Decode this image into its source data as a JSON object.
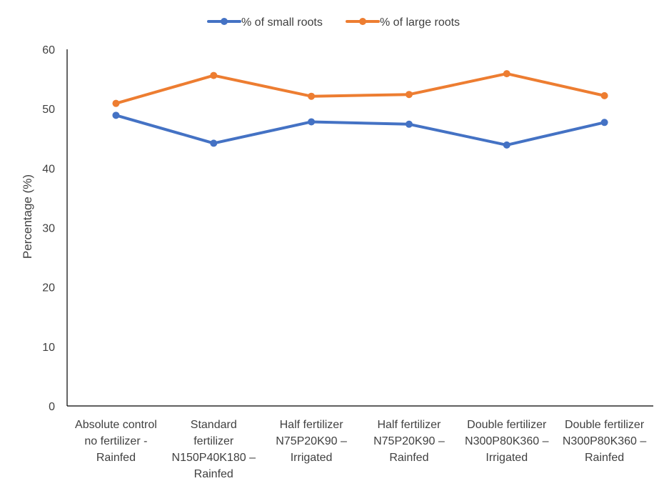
{
  "chart_data": {
    "type": "line",
    "title": "",
    "xlabel": "",
    "ylabel": "Percentage (%)",
    "ylim": [
      0,
      60
    ],
    "yticks": [
      0,
      10,
      20,
      30,
      40,
      50,
      60
    ],
    "grid": false,
    "legend_position": "top-center",
    "categories": [
      [
        "Absolute control",
        "no fertilizer -",
        "Rainfed"
      ],
      [
        "Standard",
        "fertilizer",
        "N150P40K180 –",
        "Rainfed"
      ],
      [
        "Half fertilizer",
        "N75P20K90 –",
        "Irrigated"
      ],
      [
        "Half fertilizer",
        "N75P20K90 –",
        "Rainfed"
      ],
      [
        "Double fertilizer",
        "N300P80K360 –",
        "Irrigated"
      ],
      [
        "Double fertilizer",
        "N300P80K360 –",
        "Rainfed"
      ]
    ],
    "series": [
      {
        "name": "% of small roots",
        "color": "#4472C4",
        "values": [
          48.9,
          44.2,
          47.8,
          47.4,
          43.9,
          47.7
        ]
      },
      {
        "name": "% of large roots",
        "color": "#ED7D31",
        "values": [
          50.9,
          55.6,
          52.1,
          52.4,
          55.9,
          52.2
        ]
      }
    ]
  }
}
